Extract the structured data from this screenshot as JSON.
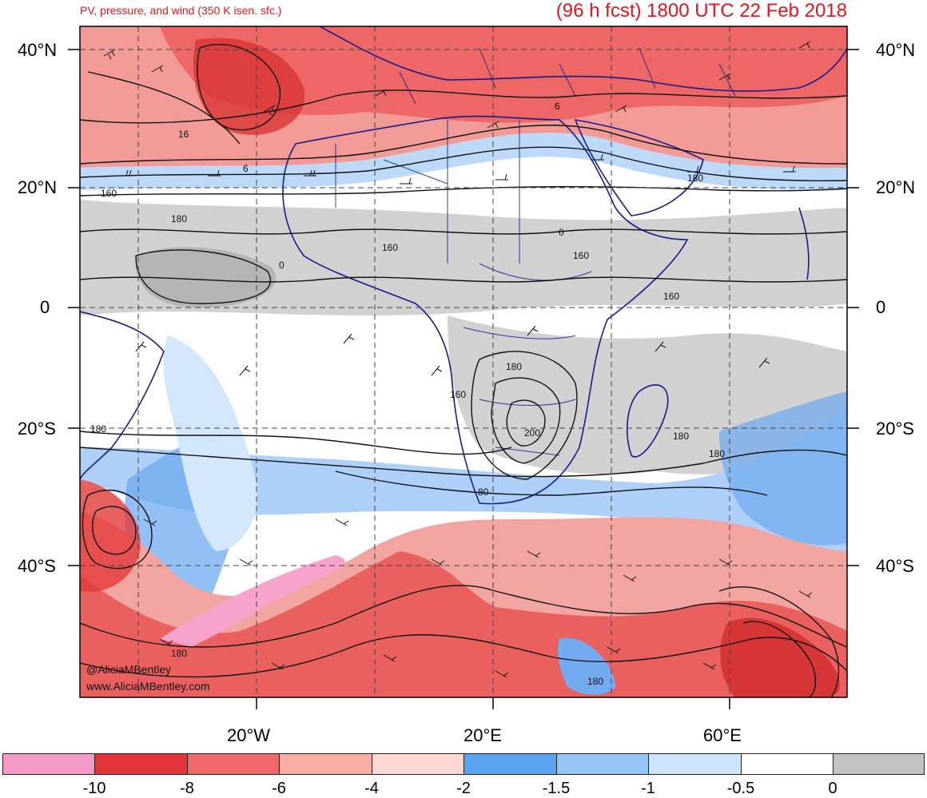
{
  "title_left": "PV, pressure, and wind (350 K isen. sfc.)",
  "title_right": "(96 h fcst) 1800 UTC 22 Feb 2018",
  "lat_labels": [
    "40°N",
    "20°N",
    "0",
    "20°S",
    "40°S"
  ],
  "lon_labels": [
    "20°W",
    "20°E",
    "60°E"
  ],
  "credits": [
    "@AliciaMBentley",
    "www.AliciaMBentley.com"
  ],
  "contour_labels": [
    "16",
    "6",
    "160",
    "180",
    "0",
    "160",
    "160",
    "180",
    "160",
    "180",
    "200",
    "180",
    "160",
    "180",
    "80",
    "180",
    "180",
    "6",
    "0",
    "180"
  ],
  "colorbar": {
    "colors": [
      "#f59ac6",
      "#e3363a",
      "#f0696a",
      "#f8aea6",
      "#fbd9d2",
      "#5aa4f2",
      "#96c6f6",
      "#cde4fb",
      "#ffffff",
      "#c3c3c3"
    ],
    "labels": [
      "-10",
      "-8",
      "-6",
      "-4",
      "-2",
      "-1.5",
      "-1",
      "-0.5",
      "0"
    ]
  },
  "colors": {
    "title": "#e8141c",
    "boundary": "#1a1a8c",
    "contour": "#111111"
  }
}
